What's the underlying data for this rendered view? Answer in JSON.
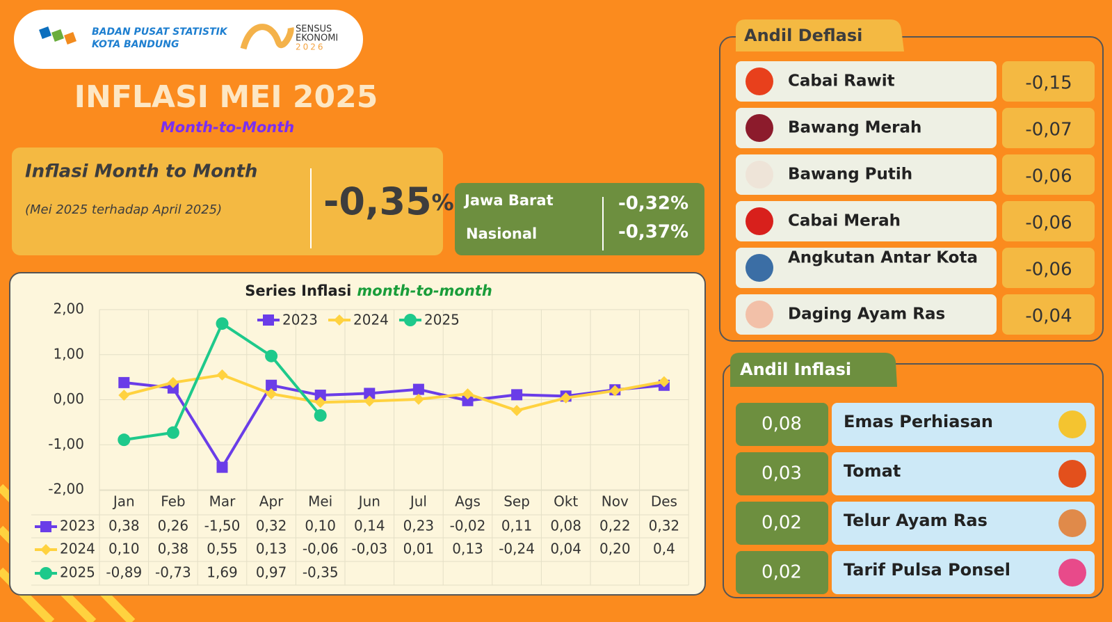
{
  "header": {
    "org": [
      "BADAN PUSAT STATISTIK",
      "KOTA BANDUNG"
    ],
    "sensus": [
      "SENSUS",
      "EKONOMI",
      "2026"
    ]
  },
  "title": "INFLASI MEI 2025",
  "subtitle": "Month-to-Month",
  "mtm": {
    "label": "Inflasi Month to Month",
    "period": "(Mei 2025 terhadap April 2025)",
    "value": "-0,35",
    "unit": "%"
  },
  "compare": [
    {
      "name": "Jawa Barat",
      "value": "-0,32%"
    },
    {
      "name": "Nasional",
      "value": "-0,37%"
    }
  ],
  "deflasi": {
    "title": "Andil Deflasi",
    "items": [
      {
        "name": "Cabai Rawit",
        "value": "-0,15"
      },
      {
        "name": "Bawang Merah",
        "value": "-0,07"
      },
      {
        "name": "Bawang Putih",
        "value": "-0,06"
      },
      {
        "name": "Cabai Merah",
        "value": "-0,06"
      },
      {
        "name": "Angkutan Antar Kota",
        "value": "-0,06"
      },
      {
        "name": "Daging Ayam Ras",
        "value": "-0,04"
      }
    ]
  },
  "inflasi": {
    "title": "Andil Inflasi",
    "items": [
      {
        "name": "Emas Perhiasan",
        "value": "0,08"
      },
      {
        "name": "Tomat",
        "value": "0,03"
      },
      {
        "name": "Telur Ayam Ras",
        "value": "0,02"
      },
      {
        "name": "Tarif Pulsa Ponsel",
        "value": "0,02"
      }
    ]
  },
  "chart_data": {
    "type": "line",
    "title": "Series Inflasi",
    "title_emphasis": "month-to-month",
    "categories": [
      "Jan",
      "Feb",
      "Mar",
      "Apr",
      "Mei",
      "Jun",
      "Jul",
      "Ags",
      "Sep",
      "Okt",
      "Nov",
      "Des"
    ],
    "series": [
      {
        "name": "2023",
        "color": "#6a3de8",
        "marker": "square",
        "values": [
          0.38,
          0.26,
          -1.5,
          0.32,
          0.1,
          0.14,
          0.23,
          -0.02,
          0.11,
          0.08,
          0.22,
          0.32
        ],
        "value_labels": [
          "0,38",
          "0,26",
          "-1,50",
          "0,32",
          "0,10",
          "0,14",
          "0,23",
          "-0,02",
          "0,11",
          "0,08",
          "0,22",
          "0,32"
        ]
      },
      {
        "name": "2024",
        "color": "#ffd23f",
        "marker": "diamond",
        "values": [
          0.1,
          0.38,
          0.55,
          0.13,
          -0.06,
          -0.03,
          0.01,
          0.13,
          -0.24,
          0.04,
          0.2,
          0.4
        ],
        "value_labels": [
          "0,10",
          "0,38",
          "0,55",
          "0,13",
          "-0,06",
          "-0,03",
          "0,01",
          "0,13",
          "-0,24",
          "0,04",
          "0,20",
          "0,4"
        ]
      },
      {
        "name": "2025",
        "color": "#1ec98b",
        "marker": "circle",
        "values": [
          -0.89,
          -0.73,
          1.69,
          0.97,
          -0.35,
          null,
          null,
          null,
          null,
          null,
          null,
          null
        ],
        "value_labels": [
          "-0,89",
          "-0,73",
          "1,69",
          "0,97",
          "-0,35",
          null,
          null,
          null,
          null,
          null,
          null,
          null
        ]
      }
    ],
    "ylim": [
      -2,
      2
    ],
    "yticks": [
      {
        "value": 2,
        "label": "2,00"
      },
      {
        "value": 1,
        "label": "1,00"
      },
      {
        "value": 0,
        "label": "0,00"
      },
      {
        "value": -1,
        "label": "-1,00"
      },
      {
        "value": -2,
        "label": "-2,00"
      }
    ],
    "grid": true
  }
}
